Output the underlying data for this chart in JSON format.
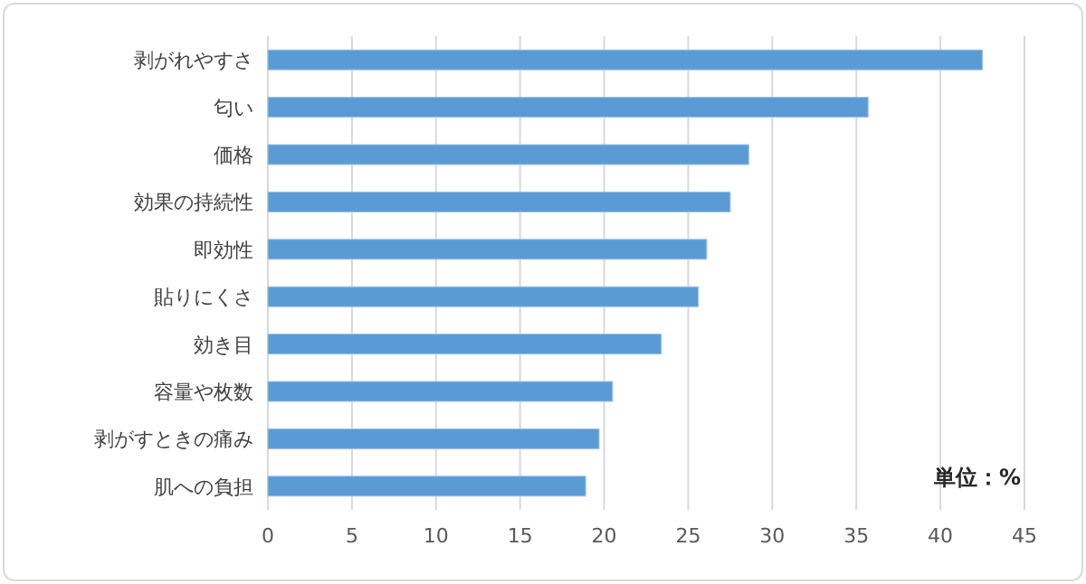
{
  "chart_data": {
    "type": "bar",
    "orientation": "horizontal",
    "categories": [
      "剥がれやすさ",
      "匂い",
      "価格",
      "効果の持続性",
      "即効性",
      "貼りにくさ",
      "効き目",
      "容量や枚数",
      "剥がすときの痛み",
      "肌への負担"
    ],
    "values": [
      42.5,
      35.7,
      28.6,
      27.5,
      26.1,
      25.6,
      23.4,
      20.5,
      19.7,
      18.9
    ],
    "color": "#5b9bd5",
    "xlim": [
      0,
      45
    ],
    "xticks": [
      0,
      5,
      10,
      15,
      20,
      25,
      30,
      35,
      40,
      45
    ],
    "grid": "x",
    "annotations": [
      "単位：%"
    ]
  }
}
